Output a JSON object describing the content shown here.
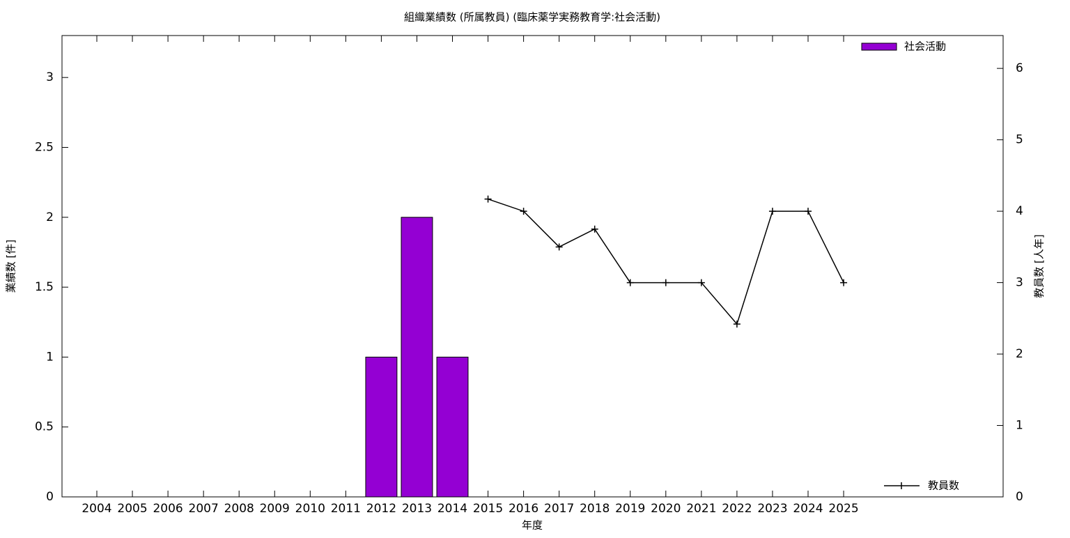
{
  "chart_data": {
    "type": "bar",
    "title": "組織業績数 (所属教員) (臨床薬学実務教育学:社会活動)",
    "xlabel": "年度",
    "ylabel": "業績数 [件]",
    "y2label": "教員数 [人年]",
    "categories": [
      "2004",
      "2005",
      "2006",
      "2007",
      "2008",
      "2009",
      "2010",
      "2011",
      "2012",
      "2013",
      "2014",
      "2015",
      "2016",
      "2017",
      "2018",
      "2019",
      "2020",
      "2021",
      "2022",
      "2023",
      "2024",
      "2025"
    ],
    "series": [
      {
        "name": "社会活動",
        "type": "bar",
        "color": "#9400d3",
        "values": [
          null,
          null,
          null,
          null,
          null,
          null,
          null,
          null,
          1,
          2,
          1,
          null,
          null,
          null,
          null,
          null,
          null,
          null,
          null,
          null,
          null,
          null
        ]
      },
      {
        "name": "教員数",
        "type": "line",
        "axis": "y2",
        "color": "#000000",
        "values": [
          null,
          null,
          null,
          null,
          null,
          null,
          null,
          null,
          null,
          null,
          null,
          4.17,
          4,
          3.5,
          3.75,
          3,
          3,
          3,
          2.42,
          4,
          4,
          3
        ]
      }
    ],
    "ylim": [
      0,
      3.3
    ],
    "yticks": [
      0,
      0.5,
      1,
      1.5,
      2,
      2.5,
      3
    ],
    "y2lim": [
      0,
      6.46
    ],
    "y2ticks": [
      0,
      1,
      2,
      3,
      4,
      5,
      6
    ],
    "legend": "top-right"
  }
}
